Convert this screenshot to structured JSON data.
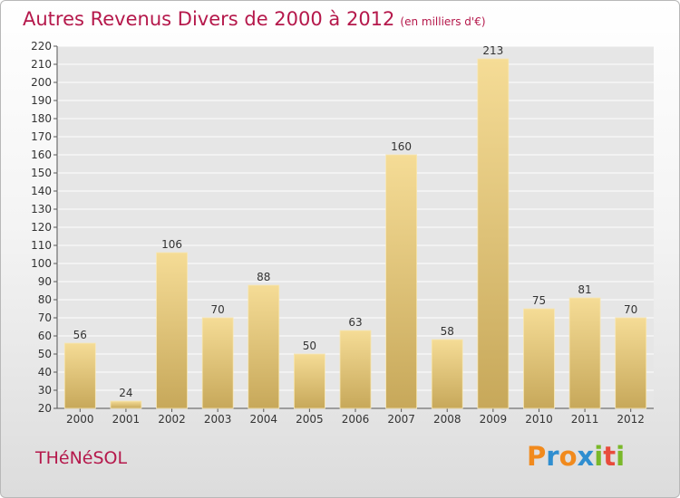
{
  "title": "Autres Revenus Divers de 2000 à 2012",
  "unit": "(en milliers d'€)",
  "commune": "THéNéSOL",
  "logo": {
    "letters": [
      "P",
      "r",
      "o",
      "x",
      "i",
      "t",
      "i"
    ],
    "colors": [
      "#f18a1d",
      "#2f8ed0",
      "#f18a1d",
      "#2f8ed0",
      "#7ab829",
      "#e84b3c",
      "#7ab829"
    ]
  },
  "colors": {
    "bar_top": "#f5dc96",
    "bar_bottom": "#c7a85a",
    "title": "#b5184b",
    "grid": "#ffffff"
  },
  "chart_data": {
    "type": "bar",
    "title": "Autres Revenus Divers de 2000 à 2012",
    "categories": [
      "2000",
      "2001",
      "2002",
      "2003",
      "2004",
      "2005",
      "2006",
      "2007",
      "2008",
      "2009",
      "2010",
      "2011",
      "2012"
    ],
    "values": [
      56,
      24,
      106,
      70,
      88,
      50,
      63,
      160,
      58,
      213,
      75,
      81,
      70
    ],
    "ylim": [
      20,
      220
    ],
    "yticks": [
      20,
      30,
      40,
      50,
      60,
      70,
      80,
      90,
      100,
      110,
      120,
      130,
      140,
      150,
      160,
      170,
      180,
      190,
      200,
      210,
      220
    ],
    "grid": true
  }
}
